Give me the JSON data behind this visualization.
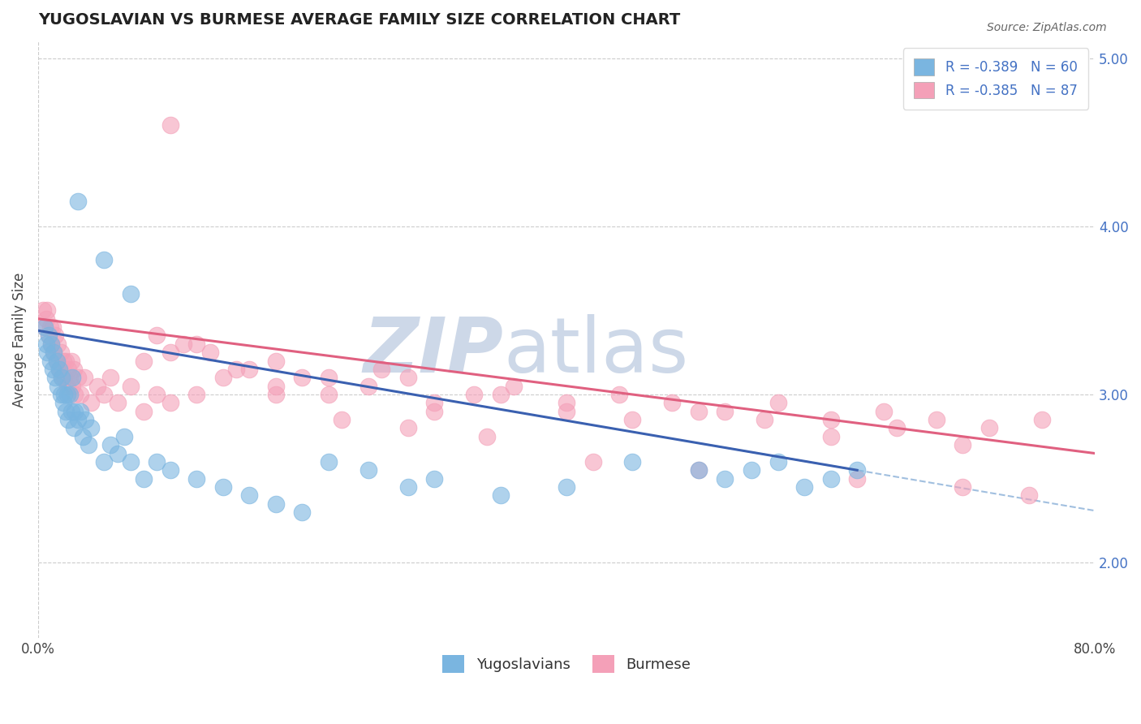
{
  "title": "YUGOSLAVIAN VS BURMESE AVERAGE FAMILY SIZE CORRELATION CHART",
  "source": "Source: ZipAtlas.com",
  "ylabel": "Average Family Size",
  "yticks_right": [
    2.0,
    3.0,
    4.0,
    5.0
  ],
  "legend_entries": [
    {
      "label": "R = -0.389   N = 60",
      "color": "#a8c4e0"
    },
    {
      "label": "R = -0.385   N = 87",
      "color": "#f4b8c8"
    }
  ],
  "legend_labels_bottom": [
    "Yugoslavians",
    "Burmese"
  ],
  "yug_color": "#7ab5e0",
  "bur_color": "#f4a0b8",
  "yug_line_color": "#3a60b0",
  "bur_line_color": "#e06080",
  "yug_R": -0.389,
  "yug_N": 60,
  "bur_R": -0.385,
  "bur_N": 87,
  "x_min": 0.0,
  "x_max": 0.8,
  "y_min": 1.55,
  "y_max": 5.1,
  "background_color": "#ffffff",
  "watermark_color": "#cdd8e8",
  "grid_color": "#cccccc",
  "yug_x": [
    0.005,
    0.006,
    0.007,
    0.008,
    0.009,
    0.01,
    0.011,
    0.012,
    0.013,
    0.014,
    0.015,
    0.016,
    0.017,
    0.018,
    0.019,
    0.02,
    0.021,
    0.022,
    0.023,
    0.024,
    0.025,
    0.026,
    0.027,
    0.028,
    0.03,
    0.032,
    0.034,
    0.036,
    0.038,
    0.04,
    0.05,
    0.055,
    0.06,
    0.065,
    0.07,
    0.08,
    0.09,
    0.1,
    0.12,
    0.14,
    0.16,
    0.18,
    0.2,
    0.22,
    0.25,
    0.28,
    0.3,
    0.35,
    0.4,
    0.45,
    0.5,
    0.52,
    0.54,
    0.56,
    0.58,
    0.6,
    0.62,
    0.03,
    0.05,
    0.07
  ],
  "yug_y": [
    3.4,
    3.3,
    3.25,
    3.35,
    3.2,
    3.3,
    3.15,
    3.25,
    3.1,
    3.2,
    3.05,
    3.15,
    3.0,
    3.1,
    2.95,
    3.0,
    2.9,
    3.0,
    2.85,
    3.0,
    2.9,
    3.1,
    2.8,
    2.9,
    2.85,
    2.9,
    2.75,
    2.85,
    2.7,
    2.8,
    2.6,
    2.7,
    2.65,
    2.75,
    2.6,
    2.5,
    2.6,
    2.55,
    2.5,
    2.45,
    2.4,
    2.35,
    2.3,
    2.6,
    2.55,
    2.45,
    2.5,
    2.4,
    2.45,
    2.6,
    2.55,
    2.5,
    2.55,
    2.6,
    2.45,
    2.5,
    2.55,
    4.15,
    3.8,
    3.6
  ],
  "bur_x": [
    0.004,
    0.005,
    0.006,
    0.007,
    0.008,
    0.009,
    0.01,
    0.011,
    0.012,
    0.013,
    0.014,
    0.015,
    0.016,
    0.017,
    0.018,
    0.019,
    0.02,
    0.021,
    0.022,
    0.023,
    0.024,
    0.025,
    0.026,
    0.027,
    0.028,
    0.03,
    0.032,
    0.035,
    0.04,
    0.045,
    0.05,
    0.055,
    0.06,
    0.07,
    0.08,
    0.09,
    0.1,
    0.12,
    0.14,
    0.16,
    0.18,
    0.2,
    0.22,
    0.25,
    0.28,
    0.3,
    0.33,
    0.36,
    0.4,
    0.44,
    0.48,
    0.52,
    0.56,
    0.6,
    0.64,
    0.68,
    0.72,
    0.76,
    0.08,
    0.1,
    0.12,
    0.15,
    0.18,
    0.22,
    0.26,
    0.3,
    0.35,
    0.4,
    0.45,
    0.5,
    0.55,
    0.6,
    0.65,
    0.7,
    0.09,
    0.11,
    0.13,
    0.18,
    0.23,
    0.28,
    0.34,
    0.42,
    0.5,
    0.62,
    0.7,
    0.75,
    0.1
  ],
  "bur_y": [
    3.5,
    3.4,
    3.45,
    3.5,
    3.35,
    3.4,
    3.3,
    3.4,
    3.25,
    3.35,
    3.2,
    3.3,
    3.15,
    3.25,
    3.1,
    3.2,
    3.1,
    3.2,
    3.05,
    3.15,
    3.1,
    3.2,
    3.05,
    3.15,
    3.0,
    3.1,
    3.0,
    3.1,
    2.95,
    3.05,
    3.0,
    3.1,
    2.95,
    3.05,
    2.9,
    3.0,
    2.95,
    3.0,
    3.1,
    3.15,
    3.05,
    3.1,
    3.0,
    3.05,
    3.1,
    2.95,
    3.0,
    3.05,
    2.9,
    3.0,
    2.95,
    2.9,
    2.95,
    2.85,
    2.9,
    2.85,
    2.8,
    2.85,
    3.2,
    3.25,
    3.3,
    3.15,
    3.2,
    3.1,
    3.15,
    2.9,
    3.0,
    2.95,
    2.85,
    2.9,
    2.85,
    2.75,
    2.8,
    2.7,
    3.35,
    3.3,
    3.25,
    3.0,
    2.85,
    2.8,
    2.75,
    2.6,
    2.55,
    2.5,
    2.45,
    2.4,
    4.6
  ]
}
